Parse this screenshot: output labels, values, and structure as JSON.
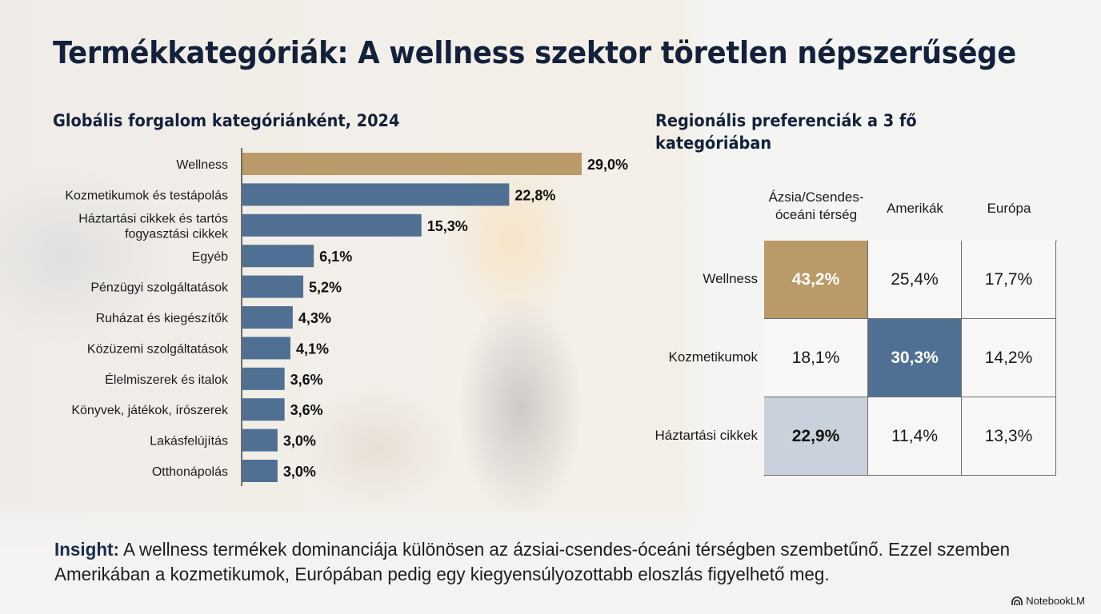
{
  "page": {
    "title": "Termékkategóriák: A wellness szektor töretlen népszerűsége",
    "left_subtitle": "Globális forgalom kategóriánként, 2024",
    "right_subtitle": "Regionális preferenciák a 3 fő kategóriában"
  },
  "colors": {
    "highlight": "#b99a68",
    "bar": "#4f7093",
    "light_blue": "#c9d1dc",
    "title": "#13213b"
  },
  "chart_data": [
    {
      "type": "bar",
      "orientation": "horizontal",
      "title": "Globális forgalom kategóriánként, 2024",
      "xlabel": "",
      "ylabel": "",
      "unit": "%",
      "xlim": [
        0,
        29
      ],
      "grid": false,
      "categories": [
        "Wellness",
        "Kozmetikumok és testápolás",
        "Háztartási cikkek és tartós fogyasztási cikkek",
        "Egyéb",
        "Pénzügyi szolgáltatások",
        "Ruházat és kiegészítők",
        "Közüzemi szolgáltatások",
        "Élelmiszerek és italok",
        "Könyvek, játékok, írószerek",
        "Lakásfelújítás",
        "Otthonápolás"
      ],
      "category_lines": [
        [
          "Wellness"
        ],
        [
          "Kozmetikumok és testápolás"
        ],
        [
          "Háztartási cikkek és tartós",
          "fogyasztási cikkek"
        ],
        [
          "Egyéb"
        ],
        [
          "Pénzügyi szolgáltatások"
        ],
        [
          "Ruházat és kiegészítők"
        ],
        [
          "Közüzemi szolgáltatások"
        ],
        [
          "Élelmiszerek és italok"
        ],
        [
          "Könyvek, játékok, írószerek"
        ],
        [
          "Lakásfelújítás"
        ],
        [
          "Otthonápolás"
        ]
      ],
      "values": [
        29.0,
        22.8,
        15.3,
        6.1,
        5.2,
        4.3,
        4.1,
        3.6,
        3.6,
        3.0,
        3.0
      ],
      "value_labels": [
        "29,0%",
        "22,8%",
        "15,3%",
        "6,1%",
        "5,2%",
        "4,3%",
        "4,1%",
        "3,6%",
        "3,6%",
        "3,0%",
        "3,0%"
      ],
      "highlighted": [
        true,
        false,
        false,
        false,
        false,
        false,
        false,
        false,
        false,
        false,
        false
      ]
    },
    {
      "type": "table",
      "title": "Regionális preferenciák a 3 fő kategóriában",
      "columns": [
        "Ázsia/Csendes-óceáni térség",
        "Amerikák",
        "Európa"
      ],
      "column_lines": [
        [
          "Ázsia/Csendes-",
          "óceáni térség"
        ],
        [
          "Amerikák"
        ],
        [
          "Európa"
        ]
      ],
      "rows": [
        "Wellness",
        "Kozmetikumok",
        "Háztartási cikkek"
      ],
      "values": [
        [
          43.2,
          25.4,
          17.7
        ],
        [
          18.1,
          30.3,
          14.2
        ],
        [
          22.9,
          11.4,
          13.3
        ]
      ],
      "value_labels": [
        [
          "43,2%",
          "25,4%",
          "17,7%"
        ],
        [
          "18,1%",
          "30,3%",
          "14,2%"
        ],
        [
          "22,9%",
          "11,4%",
          "13,3%"
        ]
      ],
      "highlight": [
        [
          "gold",
          "none",
          "none"
        ],
        [
          "none",
          "blue",
          "none"
        ],
        [
          "light-blue",
          "none",
          "none"
        ]
      ]
    }
  ],
  "insight": {
    "label": "Insight:",
    "text": "A wellness termékek dominanciája különösen az ázsiai-csendes-óceáni térségben szembetűnő. Ezzel szemben Amerikában a kozmetikumok, Európában pedig egy kiegyensúlyozottabb eloszlás figyelhető meg."
  },
  "brand": {
    "name": "NotebookLM",
    "icon": "notebooklm-logo-icon"
  }
}
